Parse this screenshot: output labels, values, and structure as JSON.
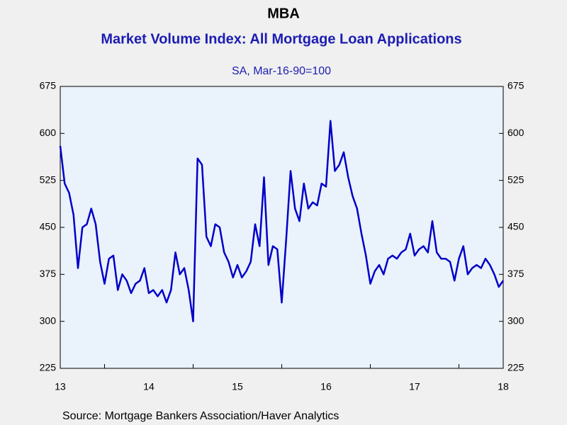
{
  "chart_data": {
    "type": "line",
    "title": "MBA",
    "subtitle": "Market Volume Index: All Mortgage Loan Applications",
    "axis_note": "SA, Mar-16-90=100",
    "source": "Source:  Mortgage Bankers Association/Haver Analytics",
    "x": [
      2013.0,
      2013.05,
      2013.1,
      2013.15,
      2013.2,
      2013.25,
      2013.3,
      2013.35,
      2013.4,
      2013.45,
      2013.5,
      2013.55,
      2013.6,
      2013.65,
      2013.7,
      2013.75,
      2013.8,
      2013.85,
      2013.9,
      2013.95,
      2014.0,
      2014.05,
      2014.1,
      2014.15,
      2014.2,
      2014.25,
      2014.3,
      2014.35,
      2014.4,
      2014.45,
      2014.5,
      2014.55,
      2014.6,
      2014.65,
      2014.7,
      2014.75,
      2014.8,
      2014.85,
      2014.9,
      2014.95,
      2015.0,
      2015.05,
      2015.1,
      2015.15,
      2015.2,
      2015.25,
      2015.3,
      2015.35,
      2015.4,
      2015.45,
      2015.5,
      2015.55,
      2015.6,
      2015.65,
      2015.7,
      2015.75,
      2015.8,
      2015.85,
      2015.9,
      2015.95,
      2016.0,
      2016.05,
      2016.1,
      2016.15,
      2016.2,
      2016.25,
      2016.3,
      2016.35,
      2016.4,
      2016.45,
      2016.5,
      2016.55,
      2016.6,
      2016.65,
      2016.7,
      2016.75,
      2016.8,
      2016.85,
      2016.9,
      2016.95,
      2017.0,
      2017.05,
      2017.1,
      2017.15,
      2017.2,
      2017.25,
      2017.3,
      2017.35,
      2017.4,
      2017.45,
      2017.5,
      2017.55,
      2017.6,
      2017.65,
      2017.7,
      2017.75,
      2017.8,
      2017.85,
      2017.9,
      2017.95,
      2018.0
    ],
    "series": [
      {
        "color": "#0000c8",
        "values": [
          580,
          520,
          505,
          470,
          385,
          450,
          455,
          480,
          455,
          395,
          360,
          400,
          405,
          350,
          375,
          365,
          345,
          360,
          365,
          385,
          345,
          350,
          340,
          350,
          330,
          350,
          410,
          375,
          385,
          350,
          300,
          560,
          550,
          435,
          420,
          455,
          450,
          410,
          395,
          370,
          390,
          370,
          380,
          395,
          455,
          420,
          530,
          390,
          420,
          415,
          330,
          430,
          540,
          480,
          460,
          520,
          480,
          490,
          485,
          520,
          515,
          620,
          540,
          550,
          570,
          530,
          500,
          480,
          440,
          405,
          360,
          380,
          390,
          375,
          400,
          405,
          400,
          410,
          415,
          440,
          405,
          415,
          420,
          410,
          460,
          410,
          400,
          400,
          395,
          365,
          400,
          420,
          375,
          385,
          390,
          385,
          400,
          390,
          375,
          355,
          365
        ]
      }
    ],
    "xlim": [
      2013,
      2018
    ],
    "xticks": [
      {
        "value": 2013,
        "label": "13"
      },
      {
        "value": 2014,
        "label": "14"
      },
      {
        "value": 2015,
        "label": "15"
      },
      {
        "value": 2016,
        "label": "16"
      },
      {
        "value": 2017,
        "label": "17"
      },
      {
        "value": 2018,
        "label": "18"
      }
    ],
    "xminorticks": [
      2013.5,
      2014.5,
      2015.5,
      2016.5,
      2017.5
    ],
    "ylim": [
      225,
      675
    ],
    "yticks": [
      225,
      300,
      375,
      450,
      525,
      600,
      675
    ],
    "y2lim": [
      225,
      675
    ],
    "y2ticks": [
      225,
      300,
      375,
      450,
      525,
      600,
      675
    ]
  }
}
